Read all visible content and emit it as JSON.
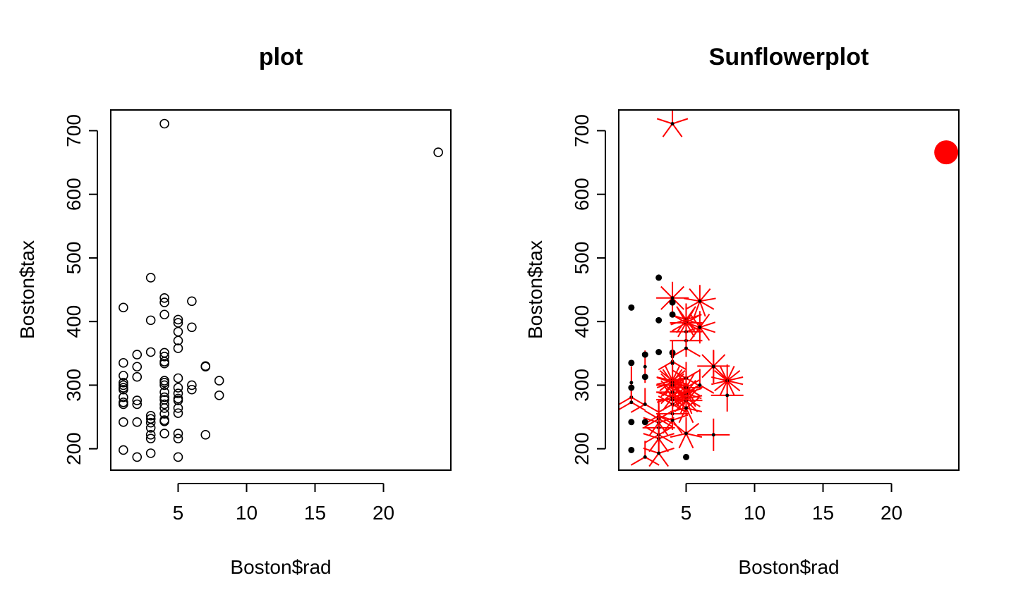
{
  "chart_data": [
    {
      "type": "scatter",
      "title": "plot",
      "xlabel": "Boston$rad",
      "ylabel": "Boston$tax",
      "xlim": [
        0.08,
        24.92
      ],
      "ylim": [
        166.4,
        732.6
      ],
      "xticks": [
        5,
        10,
        15,
        20
      ],
      "yticks": [
        200,
        300,
        400,
        500,
        600,
        700
      ],
      "grid": false,
      "point_style": "open-circle",
      "point_color": "#000000",
      "points": [
        [
          1,
          296
        ],
        [
          1,
          273
        ],
        [
          1,
          198
        ],
        [
          1,
          242
        ],
        [
          1,
          270
        ],
        [
          1,
          281
        ],
        [
          1,
          293
        ],
        [
          1,
          300
        ],
        [
          1,
          304
        ],
        [
          1,
          315
        ],
        [
          1,
          335
        ],
        [
          1,
          422
        ],
        [
          2,
          187
        ],
        [
          2,
          242
        ],
        [
          2,
          270
        ],
        [
          2,
          276
        ],
        [
          2,
          313
        ],
        [
          2,
          329
        ],
        [
          2,
          348
        ],
        [
          3,
          193
        ],
        [
          3,
          216
        ],
        [
          3,
          222
        ],
        [
          3,
          233
        ],
        [
          3,
          241
        ],
        [
          3,
          247
        ],
        [
          3,
          252
        ],
        [
          3,
          352
        ],
        [
          3,
          402
        ],
        [
          3,
          469
        ],
        [
          4,
          711
        ],
        [
          4,
          437
        ],
        [
          4,
          430
        ],
        [
          4,
          411
        ],
        [
          4,
          351
        ],
        [
          4,
          345
        ],
        [
          4,
          337
        ],
        [
          4,
          334
        ],
        [
          4,
          307
        ],
        [
          4,
          304
        ],
        [
          4,
          300
        ],
        [
          4,
          289
        ],
        [
          4,
          281
        ],
        [
          4,
          277
        ],
        [
          4,
          270
        ],
        [
          4,
          264
        ],
        [
          4,
          255
        ],
        [
          4,
          245
        ],
        [
          4,
          243
        ],
        [
          4,
          224
        ],
        [
          5,
          403
        ],
        [
          5,
          398
        ],
        [
          5,
          384
        ],
        [
          5,
          370
        ],
        [
          5,
          358
        ],
        [
          5,
          311
        ],
        [
          5,
          296
        ],
        [
          5,
          287
        ],
        [
          5,
          279
        ],
        [
          5,
          276
        ],
        [
          5,
          264
        ],
        [
          5,
          256
        ],
        [
          5,
          224
        ],
        [
          5,
          216
        ],
        [
          5,
          187
        ],
        [
          6,
          432
        ],
        [
          6,
          391
        ],
        [
          6,
          300
        ],
        [
          6,
          293
        ],
        [
          7,
          330
        ],
        [
          7,
          329
        ],
        [
          7,
          222
        ],
        [
          8,
          307
        ],
        [
          8,
          284
        ],
        [
          24,
          666
        ]
      ]
    },
    {
      "type": "scatter",
      "title": "Sunflowerplot",
      "xlabel": "Boston$rad",
      "ylabel": "Boston$tax",
      "xlim": [
        0.08,
        24.92
      ],
      "ylim": [
        166.4,
        732.6
      ],
      "xticks": [
        5,
        10,
        15,
        20
      ],
      "yticks": [
        200,
        300,
        400,
        500,
        600,
        700
      ],
      "grid": false,
      "center_color": "#000000",
      "petal_color": "#ff0000",
      "sunflowers": [
        [
          24,
          666,
          132
        ],
        [
          4,
          711,
          5
        ],
        [
          4,
          437,
          8
        ],
        [
          6,
          432,
          9
        ],
        [
          5,
          403,
          10
        ],
        [
          5,
          398,
          12
        ],
        [
          6,
          391,
          10
        ],
        [
          5,
          384,
          4
        ],
        [
          5,
          370,
          4
        ],
        [
          5,
          358,
          3
        ],
        [
          4,
          351,
          1
        ],
        [
          4,
          345,
          2
        ],
        [
          4,
          337,
          3
        ],
        [
          4,
          334,
          2
        ],
        [
          7,
          330,
          8
        ],
        [
          7,
          329,
          2
        ],
        [
          8,
          307,
          14
        ],
        [
          4,
          307,
          14
        ],
        [
          4,
          304,
          10
        ],
        [
          5,
          311,
          6
        ],
        [
          6,
          300,
          3
        ],
        [
          5,
          296,
          12
        ],
        [
          4,
          300,
          8
        ],
        [
          5,
          287,
          10
        ],
        [
          8,
          284,
          4
        ],
        [
          4,
          289,
          8
        ],
        [
          4,
          281,
          10
        ],
        [
          5,
          279,
          9
        ],
        [
          5,
          276,
          8
        ],
        [
          4,
          277,
          4
        ],
        [
          4,
          270,
          6
        ],
        [
          5,
          264,
          7
        ],
        [
          3,
          252,
          3
        ],
        [
          4,
          255,
          4
        ],
        [
          3,
          247,
          6
        ],
        [
          4,
          245,
          5
        ],
        [
          3,
          241,
          5
        ],
        [
          3,
          233,
          4
        ],
        [
          5,
          224,
          7
        ],
        [
          7,
          222,
          4
        ],
        [
          3,
          222,
          6
        ],
        [
          3,
          216,
          5
        ],
        [
          3,
          193,
          5
        ],
        [
          2,
          187,
          3
        ],
        [
          1,
          281,
          3
        ],
        [
          1,
          273,
          3
        ],
        [
          2,
          270,
          3
        ],
        [
          1,
          304,
          2
        ],
        [
          2,
          329,
          2
        ],
        [
          2,
          348,
          1
        ],
        [
          2,
          313,
          1
        ],
        [
          1,
          335,
          1
        ],
        [
          1,
          422,
          1
        ],
        [
          1,
          296,
          1
        ],
        [
          1,
          198,
          1
        ],
        [
          1,
          242,
          1
        ],
        [
          3,
          469,
          1
        ],
        [
          3,
          402,
          1
        ],
        [
          3,
          352,
          1
        ],
        [
          4,
          411,
          1
        ],
        [
          4,
          430,
          1
        ],
        [
          5,
          187,
          1
        ],
        [
          2,
          242,
          1
        ]
      ]
    }
  ]
}
